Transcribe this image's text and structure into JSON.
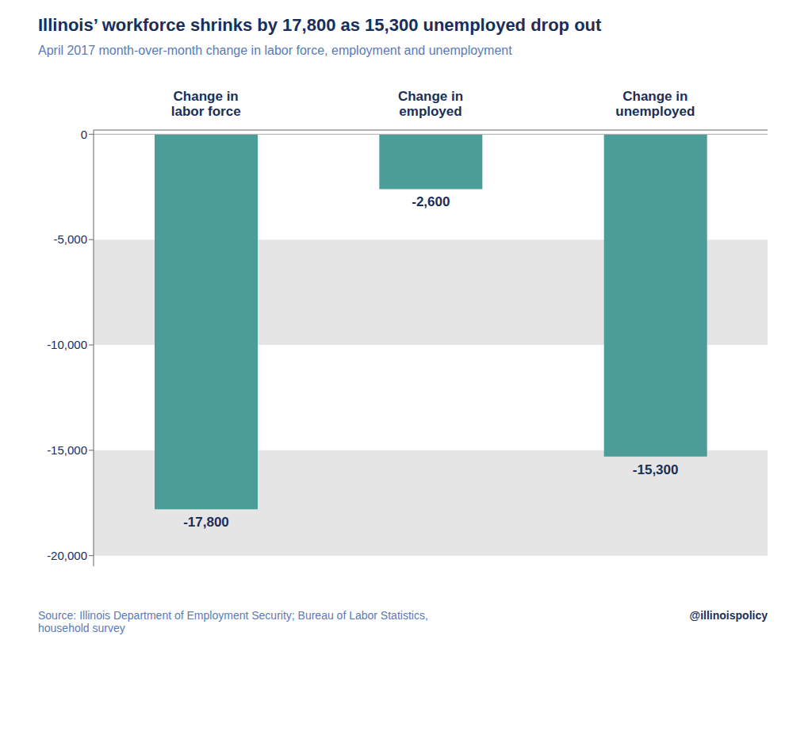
{
  "chart_data": {
    "type": "bar",
    "title": "Illinois’ workforce shrinks by 17,800 as 15,300 unemployed drop out",
    "subtitle": "April 2017 month-over-month change in labor force, employment and unemployment",
    "categories": [
      "Change in\nlabor force",
      "Change in\nemployed",
      "Change in\nunemployed"
    ],
    "values": [
      -17800,
      -2600,
      -15300
    ],
    "value_labels": [
      "-17,800",
      "-2,600",
      "-15,300"
    ],
    "data_labels": true,
    "color": "#4a9e97",
    "ylim": [
      -20500,
      200
    ],
    "yticks": [
      0,
      {
        "value": -5000,
        "label": "-5,000"
      },
      {
        "value": -10000,
        "label": "-10,000"
      },
      {
        "value": -15000,
        "label": "-15,000"
      },
      {
        "value": -20000,
        "label": "-20,000"
      }
    ],
    "annotations": [
      "Source: Illinois Department of Employment Security; Bureau of Labor Statistics,\nhousehold survey",
      "@illinoispolicy"
    ]
  }
}
